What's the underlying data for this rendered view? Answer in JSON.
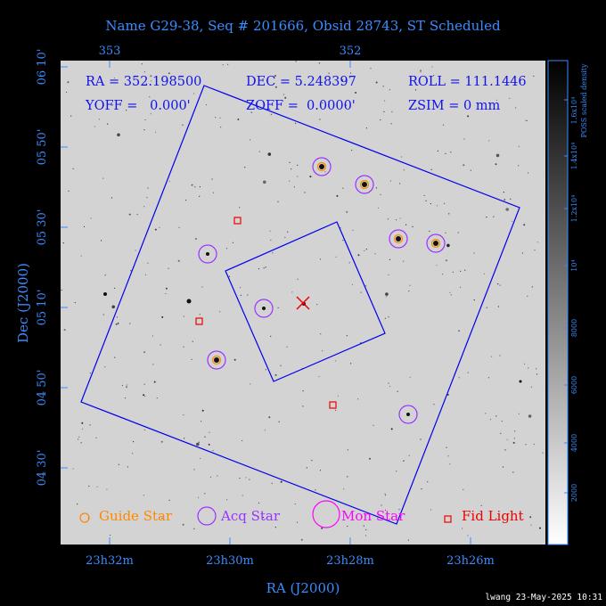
{
  "title": "Name G29-38, Seq # 201666, Obsid 28743, ST Scheduled",
  "top_ticks": [
    "353",
    "352"
  ],
  "bottom_ticks": [
    "23h32m",
    "23h30m",
    "23h28m",
    "23h26m"
  ],
  "left_ticks": [
    "06 10'",
    "05 50'",
    "05 30'",
    "05 10'",
    "04 50'",
    "04 30'"
  ],
  "xlabel": "RA (J2000)",
  "ylabel": "Dec (J2000)",
  "info": {
    "ra": "RA = 352.198500",
    "dec": "DEC = 5.248397",
    "roll": "ROLL = 111.1446",
    "yoff": "YOFF =   0.000'",
    "zoff": "ZOFF =  0.0000'",
    "zsim": "ZSIM = 0 mm"
  },
  "legend": {
    "guide": "Guide Star",
    "acq": "Acq Star",
    "mon": "Mon Star",
    "fid": "Fid Light"
  },
  "colorbar": {
    "label": "POSS scaled density",
    "ticks": [
      "2000",
      "4000",
      "6000",
      "8000",
      "10⁴",
      "1.2x10⁴",
      "1.4x10⁴",
      "1.6x10⁴"
    ]
  },
  "footer": "lwang 23-May-2025 10:31",
  "colors": {
    "title": "#3a8cff",
    "info": "#1111ee",
    "guide": "#ff8800",
    "acq": "#9933ff",
    "mon": "#ff00ff",
    "fid": "#ee0000",
    "box": "#0000ee",
    "center_mark": "#ee0000"
  }
}
